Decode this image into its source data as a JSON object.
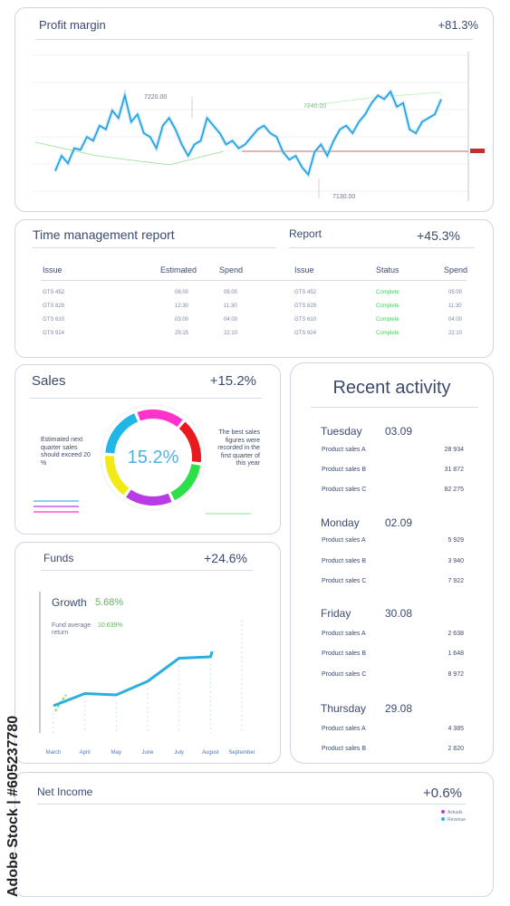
{
  "profit": {
    "title": "Profit margin",
    "value": "+81.3%",
    "annotations": [
      "7220.00",
      "7240.00",
      "7130.00"
    ]
  },
  "time_report": {
    "title": "Time management report",
    "report_label": "Report",
    "value": "+45.3%",
    "left_headers": [
      "Issue",
      "Estimated",
      "Spend"
    ],
    "right_headers": [
      "Issue",
      "Status",
      "Spend"
    ],
    "left_rows": [
      [
        "GTS 452",
        "06:00",
        "05:00"
      ],
      [
        "GTS 829",
        "12:30",
        "11:30"
      ],
      [
        "GTS 610",
        "03:00",
        "04:00"
      ],
      [
        "GTS 924",
        "25:15",
        "22:10"
      ]
    ],
    "right_rows": [
      [
        "GTS 452",
        "Complete",
        "05:00"
      ],
      [
        "GTS 829",
        "Complete",
        "11:30"
      ],
      [
        "GTS 610",
        "Complete",
        "04:00"
      ],
      [
        "GTS 924",
        "Complete",
        "22:10"
      ]
    ]
  },
  "sales": {
    "title": "Sales",
    "value": "+15.2%",
    "center": "15.2%",
    "left_note": "Estimated next quarter sales should exceed 20 %",
    "right_note": "The best sales figures were recorded in the first quarter of this year",
    "colors": [
      "#e8191f",
      "#2de04a",
      "#b83be6",
      "#f2ea17",
      "#21b6e8",
      "#ff33cc"
    ]
  },
  "activity": {
    "title": "Recent activity",
    "days": [
      {
        "day": "Tuesday",
        "date": "03.09",
        "rows": [
          [
            "Product sales A",
            "28 934"
          ],
          [
            "Product sales B",
            "31 872"
          ],
          [
            "Product sales C",
            "82 275"
          ]
        ]
      },
      {
        "day": "Monday",
        "date": "02.09",
        "rows": [
          [
            "Product sales A",
            "5 929"
          ],
          [
            "Product sales B",
            "3 940"
          ],
          [
            "Product sales C",
            "7 922"
          ]
        ]
      },
      {
        "day": "Friday",
        "date": "30.08",
        "rows": [
          [
            "Product sales A",
            "2 638"
          ],
          [
            "Product sales B",
            "1 648"
          ],
          [
            "Product sales C",
            "8 972"
          ]
        ]
      },
      {
        "day": "Thursday",
        "date": "29.08",
        "rows": [
          [
            "Product sales A",
            "4 385"
          ],
          [
            "Product sales B",
            "2 820"
          ]
        ]
      }
    ]
  },
  "funds": {
    "title": "Funds",
    "value": "+24.6%",
    "growth_label": "Growth",
    "growth_value": "5.68%",
    "avg_label": "Fund average return",
    "avg_value": "10.639%"
  },
  "net_income": {
    "title": "Net Income",
    "value": "+0.6%",
    "legend": [
      "Actuals",
      "Revenue"
    ]
  },
  "watermark": "Adobe Stock | #605237780",
  "chart_data": [
    {
      "type": "line",
      "title": "Profit margin",
      "series": [
        {
          "values": [
            7140,
            7160,
            7150,
            7170,
            7168,
            7185,
            7180,
            7200,
            7195,
            7220,
            7210,
            7240,
            7205,
            7215,
            7190,
            7185,
            7170,
            7200,
            7210,
            7195,
            7175,
            7160,
            7175,
            7180,
            7210,
            7200,
            7190,
            7175,
            7180,
            7170,
            7175,
            7185,
            7195,
            7200,
            7190,
            7185,
            7165,
            7155,
            7160,
            7145,
            7135,
            7165,
            7175,
            7160,
            7180,
            7195,
            7200,
            7190,
            7205,
            7215,
            7230,
            7240,
            7235,
            7245,
            7225,
            7230,
            7195,
            7190,
            7205,
            7210,
            7215,
            7235
          ]
        }
      ]
    },
    {
      "type": "pie",
      "title": "Sales",
      "values": [
        16,
        16,
        17,
        16,
        18,
        17
      ]
    },
    {
      "type": "line",
      "title": "Funds",
      "categories": [
        "March",
        "April",
        "May",
        "June",
        "July",
        "August",
        "September"
      ],
      "series": [
        {
          "values": [
            2.0,
            2.9,
            2.8,
            3.8,
            5.5,
            5.6,
            6.0
          ]
        }
      ]
    }
  ]
}
